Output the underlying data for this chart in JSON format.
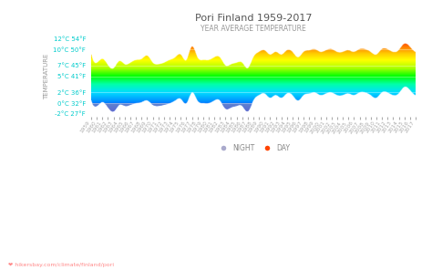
{
  "title": "Pori Finland 1959-2017",
  "subtitle": "YEAR AVERAGE TEMPERATURE",
  "ylabel": "TEMPERATURE",
  "watermark": "❤ hikersbay.com/climate/finland/pori",
  "years": [
    1959,
    1960,
    1961,
    1962,
    1963,
    1964,
    1965,
    1966,
    1967,
    1968,
    1969,
    1970,
    1971,
    1972,
    1973,
    1974,
    1975,
    1976,
    1977,
    1978,
    1979,
    1980,
    1981,
    1982,
    1983,
    1984,
    1985,
    1986,
    1987,
    1988,
    1989,
    1990,
    1991,
    1992,
    1993,
    1994,
    1995,
    1996,
    1997,
    1998,
    1999,
    2000,
    2001,
    2002,
    2003,
    2004,
    2005,
    2006,
    2007,
    2008,
    2009,
    2010,
    2011,
    2012,
    2013,
    2014,
    2015,
    2016,
    2017
  ],
  "day_temps": [
    9.0,
    7.5,
    8.2,
    7.0,
    6.5,
    7.8,
    7.2,
    7.5,
    8.0,
    8.2,
    8.8,
    7.5,
    7.2,
    7.5,
    8.0,
    8.5,
    9.0,
    8.0,
    10.5,
    8.5,
    8.0,
    8.0,
    8.5,
    8.5,
    7.0,
    7.2,
    7.5,
    7.5,
    6.5,
    8.5,
    9.5,
    9.8,
    9.0,
    9.5,
    9.0,
    9.8,
    9.5,
    8.5,
    9.5,
    9.8,
    10.0,
    9.5,
    9.8,
    10.0,
    9.5,
    9.5,
    9.8,
    9.5,
    10.0,
    10.0,
    9.5,
    9.0,
    10.0,
    10.0,
    9.5,
    9.8,
    11.0,
    10.5,
    9.5
  ],
  "night_temps": [
    0.5,
    -0.5,
    0.2,
    -0.8,
    -1.5,
    -0.3,
    -0.5,
    -0.3,
    0.0,
    0.2,
    0.5,
    -0.3,
    -0.5,
    -0.3,
    0.0,
    0.5,
    0.8,
    0.0,
    2.0,
    0.5,
    0.0,
    0.0,
    0.5,
    0.5,
    -1.0,
    -0.8,
    -0.5,
    -0.5,
    -1.5,
    0.5,
    1.5,
    1.8,
    1.0,
    1.5,
    1.0,
    1.8,
    1.5,
    0.5,
    1.5,
    1.8,
    2.0,
    1.5,
    1.8,
    2.0,
    1.5,
    1.5,
    1.8,
    1.5,
    2.0,
    2.0,
    1.5,
    1.0,
    2.0,
    2.0,
    1.5,
    1.8,
    3.0,
    2.5,
    1.5
  ],
  "ylim": [
    -2.5,
    12.5
  ],
  "yticks_c": [
    -2,
    0,
    2,
    5,
    7,
    10,
    12
  ],
  "yticks_f": [
    27,
    32,
    36,
    41,
    45,
    50,
    54
  ],
  "bg_color": "#ffffff",
  "title_color": "#555555",
  "subtitle_color": "#999999",
  "ylabel_color": "#999999",
  "watermark_color": "#ff8888",
  "rainbow_colors": [
    [
      0.0,
      "#0000cc"
    ],
    [
      0.1,
      "#0044ff"
    ],
    [
      0.2,
      "#0099ff"
    ],
    [
      0.3,
      "#00ddff"
    ],
    [
      0.4,
      "#00ffaa"
    ],
    [
      0.5,
      "#00ff00"
    ],
    [
      0.6,
      "#aaff00"
    ],
    [
      0.7,
      "#ffff00"
    ],
    [
      0.78,
      "#ffcc00"
    ],
    [
      0.85,
      "#ff8800"
    ],
    [
      0.92,
      "#ff4400"
    ],
    [
      1.0,
      "#ff0000"
    ]
  ],
  "night_below_color": "#8888bb"
}
